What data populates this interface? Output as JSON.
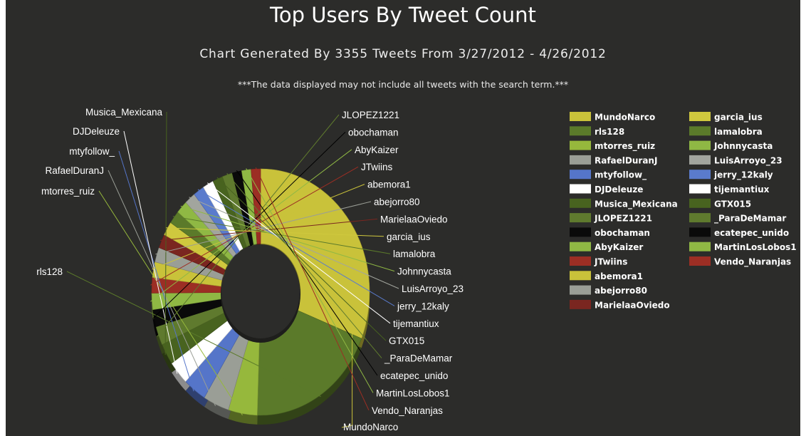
{
  "chart_data": {
    "type": "pie",
    "variant": "3d-donut",
    "title": "Top Users By Tweet Count",
    "subtitle": "Chart Generated By 3355 Tweets From 3/27/2012 - 4/26/2012",
    "note": "***The data displayed may not include all tweets with the search term.***",
    "legend_position": "right",
    "slices": [
      {
        "name": "MundoNarco",
        "value": 29.0,
        "color": "#c9c23a"
      },
      {
        "name": "rls128",
        "value": 18.0,
        "color": "#5b7a2a"
      },
      {
        "name": "mtorres_ruiz",
        "value": 4.0,
        "color": "#96b83c"
      },
      {
        "name": "RafaelDuranJ",
        "value": 3.6,
        "color": "#9a9e96"
      },
      {
        "name": "mtyfollow_",
        "value": 3.2,
        "color": "#5575c9"
      },
      {
        "name": "DJDeleuze",
        "value": 2.9,
        "color": "#ffffff"
      },
      {
        "name": "Musica_Mexicana",
        "value": 2.6,
        "color": "#48631f"
      },
      {
        "name": "JLOPEZ1221",
        "value": 2.3,
        "color": "#5f7a2e"
      },
      {
        "name": "obochaman",
        "value": 2.1,
        "color": "#0a0a0a"
      },
      {
        "name": "AbyKaizer",
        "value": 2.0,
        "color": "#8fb844"
      },
      {
        "name": "JTwiins",
        "value": 1.9,
        "color": "#9c2e24"
      },
      {
        "name": "abemora1",
        "value": 1.9,
        "color": "#c9c23a"
      },
      {
        "name": "abejorro80",
        "value": 1.8,
        "color": "#9a9e96"
      },
      {
        "name": "MarielaaOviedo",
        "value": 1.7,
        "color": "#7a2620"
      },
      {
        "name": "garcia_ius",
        "value": 1.7,
        "color": "#cfc83e"
      },
      {
        "name": "lamalobra",
        "value": 1.6,
        "color": "#5b7a2a"
      },
      {
        "name": "Johnnycasta",
        "value": 1.6,
        "color": "#8fb844"
      },
      {
        "name": "LuisArroyo_23",
        "value": 1.5,
        "color": "#a2a59e"
      },
      {
        "name": "jerry_12kaly",
        "value": 1.5,
        "color": "#5a7bcc"
      },
      {
        "name": "tijemantiux",
        "value": 1.5,
        "color": "#ffffff"
      },
      {
        "name": "GTX015",
        "value": 1.4,
        "color": "#48631f"
      },
      {
        "name": "_ParaDeMamar",
        "value": 1.4,
        "color": "#5f7a2e"
      },
      {
        "name": "ecatepec_unido",
        "value": 1.3,
        "color": "#0a0a0a"
      },
      {
        "name": "MartinLosLobos1",
        "value": 1.3,
        "color": "#8fb844"
      },
      {
        "name": "Vendo_Naranjas",
        "value": 1.3,
        "color": "#9c2e24"
      }
    ]
  }
}
